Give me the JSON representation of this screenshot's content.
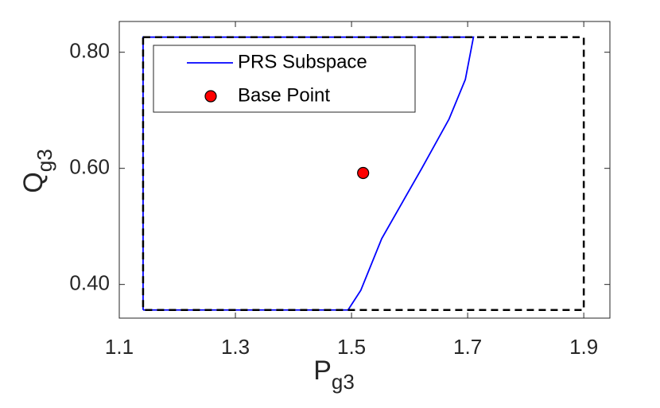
{
  "chart_data": {
    "type": "line",
    "xlabel": {
      "text": "P",
      "subscript": "g3"
    },
    "ylabel": {
      "text": "Q",
      "subscript": "g3"
    },
    "xlim": [
      1.1,
      1.945
    ],
    "ylim": [
      0.342,
      0.853
    ],
    "xticks": [
      1.1,
      1.3,
      1.5,
      1.7,
      1.9
    ],
    "yticks": [
      {
        "value": 0.4,
        "label": "0.40"
      },
      {
        "value": 0.6,
        "label": "0.60"
      },
      {
        "value": 0.8,
        "label": "0.80"
      }
    ],
    "series": [
      {
        "name": "PRS Subspace",
        "color": "#0000ff",
        "style": "solid",
        "x": [
          1.141,
          1.141,
          1.71,
          1.696,
          1.668,
          1.621,
          1.552,
          1.516,
          1.494,
          1.141
        ],
        "values": [
          0.356,
          0.826,
          0.826,
          0.753,
          0.685,
          0.6,
          0.479,
          0.39,
          0.356,
          0.356
        ]
      },
      {
        "color": "#000000",
        "style": "dashed",
        "x": [
          1.141,
          1.9,
          1.9,
          1.141,
          1.141
        ],
        "values": [
          0.826,
          0.826,
          0.356,
          0.356,
          0.826
        ]
      }
    ],
    "points": [
      {
        "name": "Base Point",
        "color": "#ff0000",
        "x": 1.52,
        "y": 0.592
      }
    ],
    "legend": "top-left"
  }
}
